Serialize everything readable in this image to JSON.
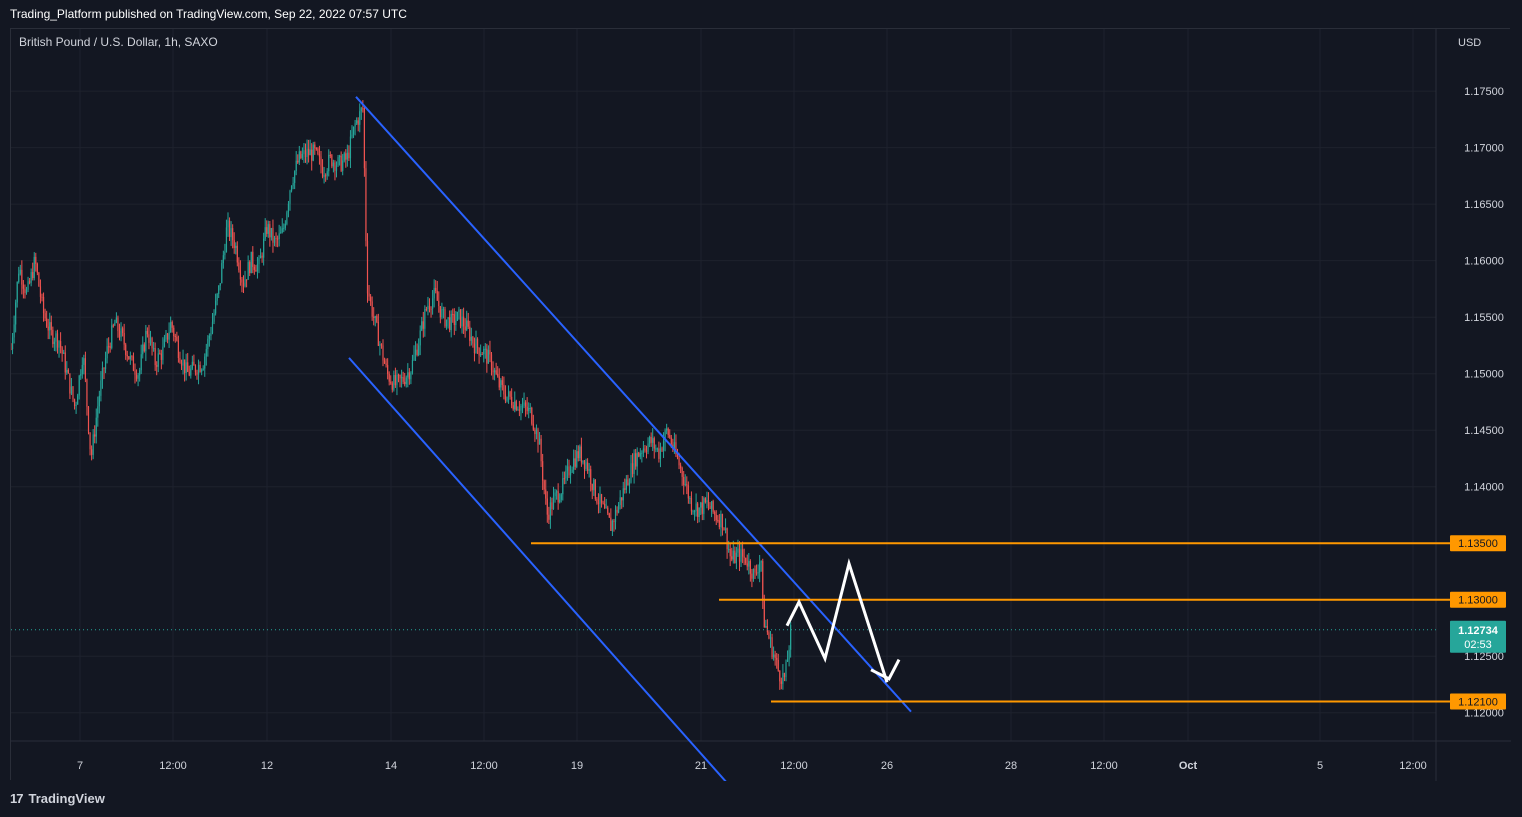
{
  "header": {
    "text": "Trading_Platform published on TradingView.com, Sep 22, 2022 07:57 UTC"
  },
  "footer": {
    "logo_mark": "17",
    "brand": "TradingView"
  },
  "colors": {
    "background": "#131722",
    "grid": "#1e222d",
    "up": "#26a69a",
    "down": "#ef5350",
    "channel": "#2962ff",
    "level": "#ff9800",
    "projection": "#ffffff",
    "axis_text": "#d1d4dc"
  },
  "chart_data": {
    "type": "candlestick",
    "symbol_label": "British Pound / U.S. Dollar, 1h, SAXO",
    "currency": "USD",
    "y_ticks": [
      "1.17500",
      "1.17000",
      "1.16500",
      "1.16000",
      "1.15500",
      "1.15000",
      "1.14500",
      "1.14000",
      "1.12500",
      "1.12000"
    ],
    "x_ticks": [
      "7",
      "12:00",
      "12",
      "14",
      "12:00",
      "19",
      "21",
      "12:00",
      "26",
      "28",
      "12:00",
      "Oct",
      "5",
      "12:00"
    ],
    "ylim": [
      1.1175,
      1.1805
    ],
    "price_path": [
      [
        0,
        1.1522
      ],
      [
        8,
        1.1595
      ],
      [
        16,
        1.157
      ],
      [
        24,
        1.16
      ],
      [
        32,
        1.1555
      ],
      [
        40,
        1.1535
      ],
      [
        48,
        1.153
      ],
      [
        56,
        1.15
      ],
      [
        64,
        1.147
      ],
      [
        72,
        1.152
      ],
      [
        80,
        1.1425
      ],
      [
        88,
        1.148
      ],
      [
        96,
        1.152
      ],
      [
        104,
        1.1545
      ],
      [
        112,
        1.153
      ],
      [
        120,
        1.151
      ],
      [
        128,
        1.15
      ],
      [
        136,
        1.154
      ],
      [
        144,
        1.151
      ],
      [
        152,
        1.152
      ],
      [
        160,
        1.1545
      ],
      [
        168,
        1.152
      ],
      [
        176,
        1.15
      ],
      [
        184,
        1.1505
      ],
      [
        192,
        1.151
      ],
      [
        200,
        1.154
      ],
      [
        208,
        1.1575
      ],
      [
        216,
        1.163
      ],
      [
        224,
        1.1615
      ],
      [
        232,
        1.158
      ],
      [
        240,
        1.16
      ],
      [
        248,
        1.1595
      ],
      [
        256,
        1.163
      ],
      [
        264,
        1.1615
      ],
      [
        272,
        1.1625
      ],
      [
        280,
        1.167
      ],
      [
        288,
        1.169
      ],
      [
        296,
        1.1695
      ],
      [
        304,
        1.1695
      ],
      [
        312,
        1.168
      ],
      [
        320,
        1.169
      ],
      [
        328,
        1.1685
      ],
      [
        336,
        1.169
      ],
      [
        344,
        1.172
      ],
      [
        352,
        1.1735
      ],
      [
        356,
        1.158
      ],
      [
        360,
        1.156
      ],
      [
        368,
        1.153
      ],
      [
        376,
        1.15
      ],
      [
        384,
        1.149
      ],
      [
        392,
        1.1495
      ],
      [
        400,
        1.1505
      ],
      [
        408,
        1.153
      ],
      [
        416,
        1.156
      ],
      [
        424,
        1.157
      ],
      [
        432,
        1.155
      ],
      [
        440,
        1.1545
      ],
      [
        448,
        1.155
      ],
      [
        456,
        1.154
      ],
      [
        464,
        1.1525
      ],
      [
        472,
        1.152
      ],
      [
        480,
        1.151
      ],
      [
        488,
        1.149
      ],
      [
        496,
        1.148
      ],
      [
        504,
        1.1475
      ],
      [
        512,
        1.147
      ],
      [
        520,
        1.1465
      ],
      [
        528,
        1.144
      ],
      [
        536,
        1.1375
      ],
      [
        544,
        1.139
      ],
      [
        552,
        1.14
      ],
      [
        560,
        1.142
      ],
      [
        568,
        1.143
      ],
      [
        576,
        1.142
      ],
      [
        584,
        1.1395
      ],
      [
        592,
        1.138
      ],
      [
        600,
        1.1365
      ],
      [
        608,
        1.1385
      ],
      [
        616,
        1.1405
      ],
      [
        624,
        1.1425
      ],
      [
        632,
        1.1435
      ],
      [
        640,
        1.144
      ],
      [
        648,
        1.143
      ],
      [
        656,
        1.145
      ],
      [
        664,
        1.143
      ],
      [
        672,
        1.141
      ],
      [
        680,
        1.1385
      ],
      [
        688,
        1.138
      ],
      [
        696,
        1.1385
      ],
      [
        704,
        1.1375
      ],
      [
        712,
        1.137
      ],
      [
        720,
        1.1335
      ],
      [
        728,
        1.134
      ],
      [
        736,
        1.1335
      ],
      [
        744,
        1.132
      ],
      [
        750,
        1.134
      ],
      [
        752,
        1.1285
      ],
      [
        760,
        1.126
      ],
      [
        768,
        1.1235
      ],
      [
        774,
        1.123
      ],
      [
        780,
        1.1273
      ]
    ],
    "channel": {
      "upper": [
        [
          355,
          1.1745
        ],
        [
          910,
          1.1201
        ]
      ],
      "lower": [
        [
          348,
          1.1514
        ],
        [
          738,
          1.1126
        ]
      ]
    },
    "levels": [
      {
        "price": 1.135,
        "label": "1.13500",
        "x_start": 530
      },
      {
        "price": 1.13,
        "label": "1.13000",
        "x_start": 718
      },
      {
        "price": 1.121,
        "label": "1.12100",
        "x_start": 770
      }
    ],
    "current_price": {
      "price": 1.12734,
      "label": "1.12734",
      "countdown": "02:53"
    },
    "projection": [
      [
        786,
        1.1277
      ],
      [
        798,
        1.1298
      ],
      [
        824,
        1.1248
      ],
      [
        848,
        1.1332
      ],
      [
        886,
        1.1227
      ]
    ],
    "projection_arrowhead": [
      [
        870,
        1.1238
      ],
      [
        888,
        1.123
      ],
      [
        898,
        1.1247
      ]
    ],
    "grid": true
  }
}
